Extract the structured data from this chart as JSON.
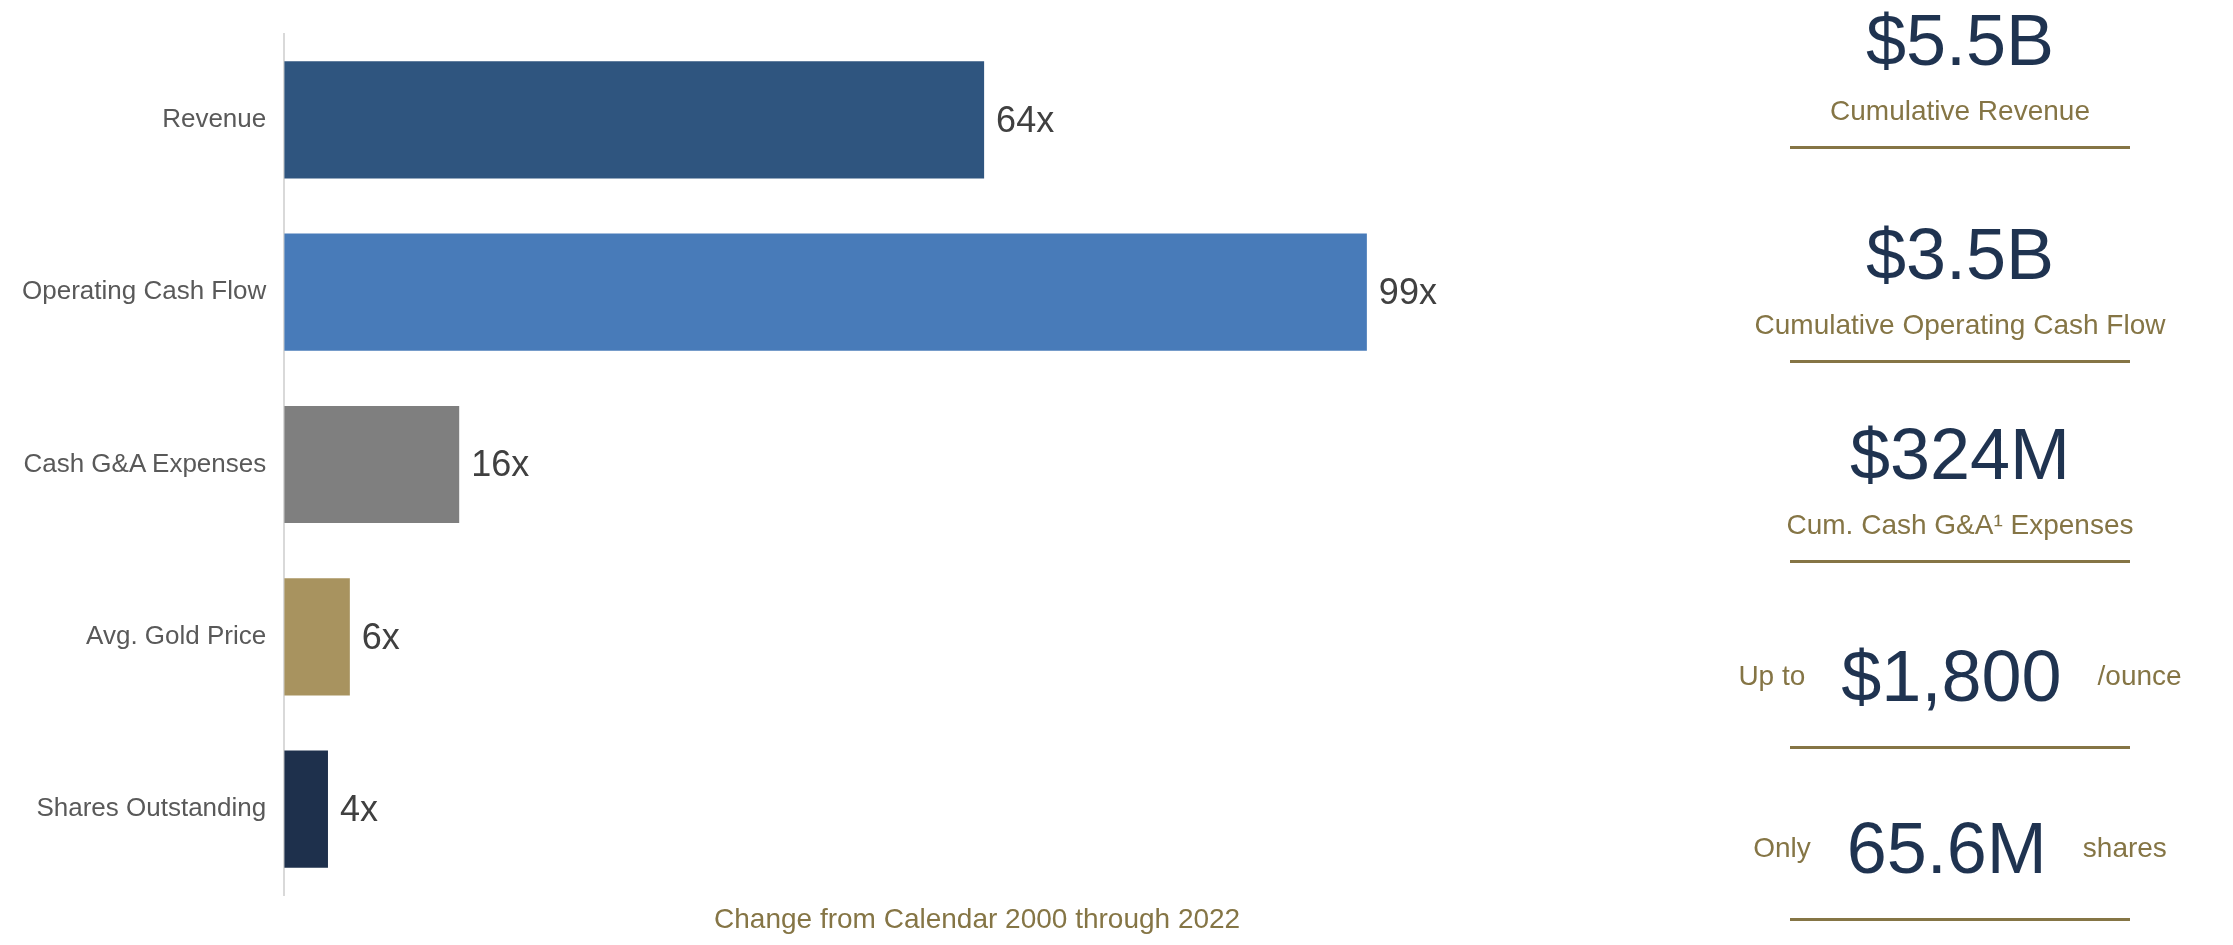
{
  "chart_data": [
    {
      "type": "bar",
      "orientation": "horizontal",
      "xlabel": "Change from Calendar 2000 through 2022",
      "categories": [
        "Revenue",
        "Operating Cash Flow",
        "Cash G&A Expenses",
        "Avg. Gold Price",
        "Shares Outstanding"
      ],
      "values": [
        64,
        99,
        16,
        6,
        4
      ],
      "colors": [
        "#2f557f",
        "#487bb9",
        "#7f7f7f",
        "#a8935f",
        "#1e304c"
      ],
      "value_labels": [
        "64x",
        "99x",
        "16x",
        "6x",
        "4x"
      ]
    },
    {
      "type": "other",
      "annotations": [
        "$5.5B",
        "Cumulative Revenue",
        "$3.5B",
        "Cumulative Operating Cash Flow",
        "$324M",
        "Cum. Cash G&A¹ Expenses",
        "Up to",
        "$1,800",
        "/ounce",
        "Only",
        "65.6M",
        "shares"
      ]
    }
  ]
}
